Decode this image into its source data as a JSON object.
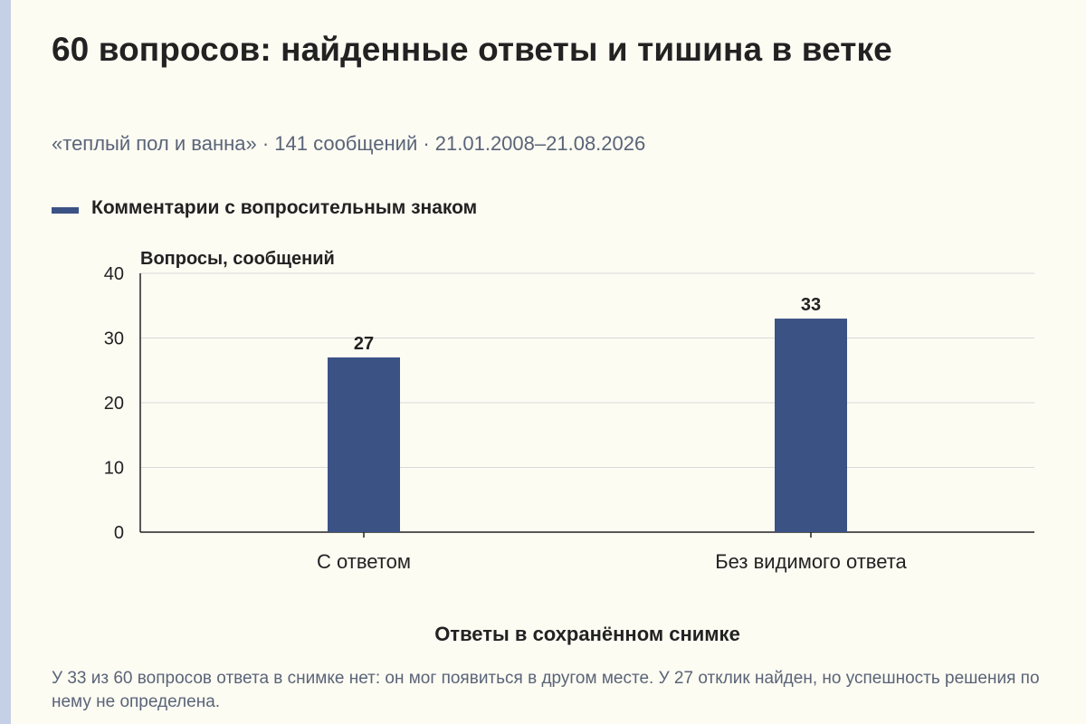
{
  "title": "60 вопросов: найденные ответы и тишина в ветке",
  "subtitle": "«теплый пол и ванна» · 141 сообщений · 21.01.2008–21.08.2026",
  "colors": {
    "bar": "#3b5285",
    "grid": "#d9d9d9",
    "axis": "#222222",
    "accent_stripe": "#c5d0e6"
  },
  "chart_data": {
    "type": "bar",
    "categories": [
      "С ответом",
      "Без видимого ответа"
    ],
    "series": [
      {
        "name": "Комментарии с вопросительным знаком",
        "values": [
          27,
          33
        ]
      }
    ],
    "data_labels": [
      "27",
      "33"
    ],
    "ylabel": "Вопросы, сообщений",
    "xlabel": "Ответы в сохранённом снимке",
    "ylim": [
      0,
      40
    ],
    "yticks": [
      0,
      10,
      20,
      30,
      40
    ],
    "grid": true,
    "legend_position": "top-left"
  },
  "footnote": "У 33 из 60 вопросов ответа в снимке нет: он мог появиться в другом месте. У 27 отклик найден, но успешность решения по нему не определена."
}
